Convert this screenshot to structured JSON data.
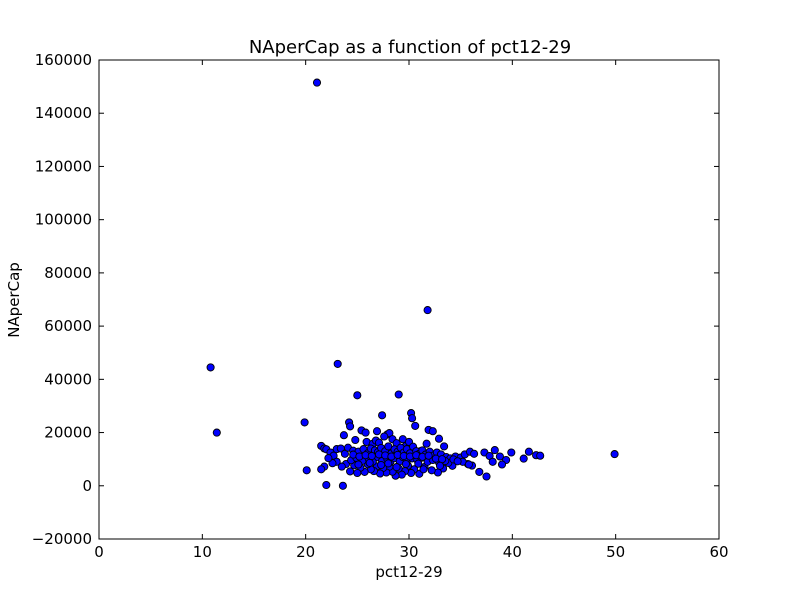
{
  "chart_data": {
    "type": "scatter",
    "title": "NAperCap as a function of pct12-29",
    "xlabel": "pct12-29",
    "ylabel": "NAperCap",
    "xlim": [
      0,
      60
    ],
    "ylim": [
      -20000,
      160000
    ],
    "xticks": [
      0,
      10,
      20,
      30,
      40,
      50,
      60
    ],
    "xtick_labels": [
      "0",
      "10",
      "20",
      "30",
      "40",
      "50",
      "60"
    ],
    "yticks": [
      -20000,
      0,
      20000,
      40000,
      60000,
      80000,
      100000,
      120000,
      140000,
      160000
    ],
    "ytick_labels": [
      "−20000",
      "0",
      "20000",
      "40000",
      "60000",
      "80000",
      "100000",
      "120000",
      "140000",
      "160000"
    ],
    "grid": false,
    "marker_color": "#0000ff",
    "marker_edge": "#000000",
    "points": [
      [
        21.1,
        151500
      ],
      [
        31.8,
        66000
      ],
      [
        10.8,
        44500
      ],
      [
        23.1,
        45800
      ],
      [
        11.4,
        20000
      ],
      [
        25.0,
        34000
      ],
      [
        29.0,
        34300
      ],
      [
        19.9,
        23800
      ],
      [
        24.2,
        23800
      ],
      [
        24.3,
        22300
      ],
      [
        27.4,
        26500
      ],
      [
        30.2,
        27300
      ],
      [
        30.3,
        25400
      ],
      [
        30.6,
        22500
      ],
      [
        31.9,
        21000
      ],
      [
        32.3,
        20500
      ],
      [
        25.4,
        20800
      ],
      [
        25.8,
        20000
      ],
      [
        26.9,
        20500
      ],
      [
        27.9,
        19300
      ],
      [
        28.1,
        19800
      ],
      [
        23.7,
        19000
      ],
      [
        24.8,
        17200
      ],
      [
        25.9,
        16500
      ],
      [
        26.5,
        15800
      ],
      [
        26.8,
        17000
      ],
      [
        27.1,
        16200
      ],
      [
        27.6,
        18500
      ],
      [
        28.4,
        17500
      ],
      [
        28.8,
        16000
      ],
      [
        29.4,
        17500
      ],
      [
        29.7,
        15000
      ],
      [
        30.0,
        16500
      ],
      [
        31.1,
        13000
      ],
      [
        31.7,
        15800
      ],
      [
        32.9,
        17700
      ],
      [
        33.4,
        14800
      ],
      [
        21.5,
        15000
      ],
      [
        21.8,
        14000
      ],
      [
        22.0,
        13700
      ],
      [
        22.4,
        12500
      ],
      [
        22.7,
        11300
      ],
      [
        23.0,
        13800
      ],
      [
        23.4,
        14000
      ],
      [
        23.8,
        12000
      ],
      [
        24.1,
        14300
      ],
      [
        24.6,
        13200
      ],
      [
        25.1,
        12800
      ],
      [
        25.6,
        13800
      ],
      [
        26.0,
        12200
      ],
      [
        26.3,
        14000
      ],
      [
        26.7,
        13300
      ],
      [
        27.0,
        12700
      ],
      [
        27.3,
        14200
      ],
      [
        27.7,
        13000
      ],
      [
        28.0,
        14800
      ],
      [
        28.3,
        12200
      ],
      [
        28.6,
        13700
      ],
      [
        28.9,
        12800
      ],
      [
        29.2,
        14300
      ],
      [
        29.5,
        12500
      ],
      [
        29.8,
        13800
      ],
      [
        30.1,
        12200
      ],
      [
        30.4,
        14700
      ],
      [
        30.7,
        13000
      ],
      [
        31.0,
        12000
      ],
      [
        31.3,
        13300
      ],
      [
        31.6,
        11700
      ],
      [
        32.0,
        12800
      ],
      [
        32.4,
        11400
      ],
      [
        32.7,
        12500
      ],
      [
        33.1,
        11800
      ],
      [
        33.6,
        10800
      ],
      [
        34.0,
        10300
      ],
      [
        34.5,
        11000
      ],
      [
        35.0,
        10600
      ],
      [
        35.4,
        11800
      ],
      [
        35.9,
        12800
      ],
      [
        36.3,
        12000
      ],
      [
        37.3,
        12500
      ],
      [
        37.8,
        11200
      ],
      [
        38.3,
        13400
      ],
      [
        38.8,
        11000
      ],
      [
        39.4,
        9700
      ],
      [
        39.9,
        12500
      ],
      [
        41.1,
        10200
      ],
      [
        41.6,
        12800
      ],
      [
        42.3,
        11500
      ],
      [
        42.7,
        11300
      ],
      [
        49.9,
        11900
      ],
      [
        36.1,
        7600
      ],
      [
        35.7,
        8200
      ],
      [
        36.8,
        5200
      ],
      [
        37.5,
        3500
      ],
      [
        38.1,
        9000
      ],
      [
        39.0,
        8000
      ],
      [
        34.2,
        7500
      ],
      [
        33.8,
        8600
      ],
      [
        33.3,
        6500
      ],
      [
        32.8,
        5000
      ],
      [
        32.2,
        5800
      ],
      [
        31.5,
        7000
      ],
      [
        31.0,
        4500
      ],
      [
        30.5,
        6200
      ],
      [
        30.2,
        4800
      ],
      [
        29.9,
        7500
      ],
      [
        29.6,
        5500
      ],
      [
        29.3,
        4200
      ],
      [
        29.0,
        6500
      ],
      [
        28.7,
        3800
      ],
      [
        28.4,
        5300
      ],
      [
        28.1,
        7200
      ],
      [
        27.8,
        5000
      ],
      [
        27.5,
        6700
      ],
      [
        27.2,
        4600
      ],
      [
        26.9,
        7300
      ],
      [
        26.6,
        5500
      ],
      [
        26.3,
        6200
      ],
      [
        26.0,
        8100
      ],
      [
        25.7,
        5200
      ],
      [
        25.3,
        6800
      ],
      [
        25.0,
        4800
      ],
      [
        24.7,
        7700
      ],
      [
        24.3,
        5400
      ],
      [
        23.9,
        8200
      ],
      [
        23.5,
        7200
      ],
      [
        23.0,
        9000
      ],
      [
        22.6,
        8500
      ],
      [
        22.2,
        10400
      ],
      [
        21.8,
        7200
      ],
      [
        21.5,
        6200
      ],
      [
        20.1,
        5800
      ],
      [
        22.0,
        300
      ],
      [
        23.6,
        0
      ],
      [
        24.4,
        9600
      ],
      [
        24.9,
        10500
      ],
      [
        25.5,
        9400
      ],
      [
        26.1,
        10200
      ],
      [
        26.5,
        9100
      ],
      [
        27.0,
        10700
      ],
      [
        27.4,
        9300
      ],
      [
        27.9,
        10100
      ],
      [
        28.2,
        9000
      ],
      [
        28.6,
        10400
      ],
      [
        29.1,
        9200
      ],
      [
        29.4,
        10800
      ],
      [
        29.8,
        9500
      ],
      [
        30.3,
        10300
      ],
      [
        30.8,
        9700
      ],
      [
        31.2,
        10500
      ],
      [
        31.8,
        9000
      ],
      [
        32.3,
        9700
      ],
      [
        32.9,
        8800
      ],
      [
        33.5,
        9300
      ],
      [
        34.3,
        9900
      ],
      [
        35.2,
        9000
      ],
      [
        35.8,
        8000
      ],
      [
        24.6,
        11700
      ],
      [
        25.2,
        11000
      ],
      [
        25.8,
        11500
      ],
      [
        26.4,
        11200
      ],
      [
        27.1,
        11800
      ],
      [
        27.7,
        11400
      ],
      [
        28.3,
        11000
      ],
      [
        28.9,
        11600
      ],
      [
        29.5,
        11200
      ],
      [
        30.1,
        11000
      ],
      [
        30.7,
        11500
      ],
      [
        31.3,
        10900
      ],
      [
        31.9,
        11300
      ],
      [
        32.6,
        10200
      ],
      [
        33.2,
        10000
      ],
      [
        34.7,
        9200
      ],
      [
        28.0,
        8400
      ],
      [
        29.7,
        8200
      ],
      [
        30.9,
        8300
      ],
      [
        26.2,
        8600
      ],
      [
        27.3,
        7800
      ],
      [
        25.1,
        8000
      ],
      [
        28.8,
        7000
      ],
      [
        31.4,
        6200
      ],
      [
        33.0,
        7500
      ]
    ]
  }
}
